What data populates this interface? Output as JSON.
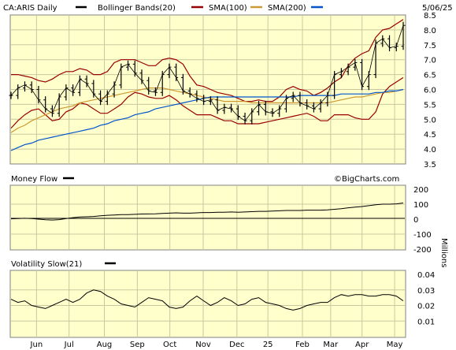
{
  "header": {
    "symbol_label": "CA:ARIS Daily",
    "bollinger_label": "Bollinger Bands(20)",
    "sma100_label": "SMA(100)",
    "sma200_label": "SMA(200)",
    "date": "5/06/25"
  },
  "panels": {
    "money_flow_label": "Money Flow",
    "volatility_label": "Volatility Slow(21)",
    "watermark": "©BigCharts.com",
    "mf_unit": "Millions"
  },
  "colors": {
    "background": "#ffffcc",
    "grid": "#c8c8a0",
    "price": "#000000",
    "bollinger": "#990000",
    "sma100": "#cc9933",
    "sma200": "#0055cc",
    "legend_price": "#000000",
    "legend_bollinger": "#990000",
    "legend_sma100": "#cc9933",
    "legend_sma200": "#0055cc"
  },
  "chart_data": [
    {
      "type": "line",
      "name": "price",
      "ylim": [
        3.5,
        8.5
      ],
      "y_ticks": [
        "3.5",
        "4.0",
        "4.5",
        "5.0",
        "5.5",
        "6.0",
        "6.5",
        "7.0",
        "7.5",
        "8.0",
        "8.5"
      ],
      "x_tick_labels": [
        "Jun",
        "Jul",
        "Aug",
        "Sep",
        "Oct",
        "Nov",
        "Dec",
        "25",
        "Feb",
        "Mar",
        "Apr",
        "May"
      ],
      "series": [
        {
          "name": "CA:ARIS Daily",
          "values": [
            5.8,
            6.05,
            6.15,
            6.0,
            5.65,
            5.35,
            5.2,
            5.75,
            6.05,
            5.9,
            6.35,
            6.2,
            5.85,
            5.6,
            5.85,
            6.15,
            6.75,
            6.85,
            6.55,
            6.3,
            5.95,
            5.9,
            6.5,
            6.75,
            6.4,
            5.95,
            5.85,
            5.7,
            5.6,
            5.65,
            5.3,
            5.4,
            5.35,
            5.1,
            4.95,
            5.25,
            5.5,
            5.25,
            5.2,
            5.35,
            5.7,
            5.8,
            5.55,
            5.45,
            5.35,
            5.55,
            5.8,
            6.5,
            6.6,
            6.75,
            6.9,
            6.1,
            6.5,
            7.55,
            7.7,
            7.4,
            7.45,
            8.15
          ]
        },
        {
          "name": "Bollinger Bands(20) upper",
          "values": [
            6.5,
            6.5,
            6.45,
            6.4,
            6.3,
            6.25,
            6.35,
            6.5,
            6.6,
            6.6,
            6.7,
            6.65,
            6.5,
            6.5,
            6.6,
            6.9,
            7.0,
            7.0,
            7.0,
            6.9,
            6.8,
            6.8,
            7.0,
            7.05,
            7.0,
            6.85,
            6.45,
            6.15,
            6.1,
            6.0,
            5.9,
            5.85,
            5.8,
            5.7,
            5.6,
            5.6,
            5.65,
            5.6,
            5.6,
            5.75,
            6.0,
            6.1,
            6.0,
            5.95,
            5.8,
            5.9,
            6.05,
            6.25,
            6.4,
            6.8,
            7.05,
            7.2,
            7.3,
            7.75,
            8.0,
            8.05,
            8.2,
            8.35
          ]
        },
        {
          "name": "Bollinger Bands(20) lower",
          "values": [
            4.7,
            4.95,
            5.15,
            5.3,
            5.35,
            5.15,
            4.95,
            5.0,
            5.25,
            5.35,
            5.55,
            5.5,
            5.35,
            5.2,
            5.2,
            5.35,
            5.5,
            5.75,
            5.9,
            5.85,
            5.75,
            5.7,
            5.7,
            5.8,
            5.65,
            5.45,
            5.3,
            5.15,
            5.15,
            5.15,
            5.05,
            4.95,
            4.95,
            4.85,
            4.85,
            4.85,
            4.85,
            4.9,
            4.95,
            5.0,
            5.05,
            5.1,
            5.15,
            5.2,
            5.1,
            4.95,
            4.95,
            5.15,
            5.15,
            5.15,
            5.05,
            5.0,
            5.0,
            5.25,
            5.85,
            6.1,
            6.25,
            6.4
          ]
        },
        {
          "name": "SMA(100)",
          "values": [
            4.55,
            4.7,
            4.8,
            4.95,
            5.05,
            5.15,
            5.25,
            5.35,
            5.4,
            5.45,
            5.55,
            5.6,
            5.65,
            5.7,
            5.75,
            5.8,
            5.85,
            5.9,
            5.95,
            6.0,
            6.05,
            6.05,
            6.05,
            6.0,
            5.95,
            5.9,
            5.85,
            5.8,
            5.75,
            5.7,
            5.65,
            5.6,
            5.6,
            5.6,
            5.6,
            5.55,
            5.55,
            5.55,
            5.55,
            5.55,
            5.55,
            5.55,
            5.55,
            5.55,
            5.55,
            5.55,
            5.55,
            5.6,
            5.65,
            5.7,
            5.75,
            5.75,
            5.8,
            5.85,
            5.9,
            5.9,
            5.95,
            6.0
          ]
        },
        {
          "name": "SMA(200)",
          "values": [
            3.95,
            4.05,
            4.15,
            4.2,
            4.3,
            4.35,
            4.4,
            4.45,
            4.5,
            4.55,
            4.6,
            4.65,
            4.7,
            4.8,
            4.85,
            4.95,
            5.0,
            5.05,
            5.15,
            5.2,
            5.25,
            5.35,
            5.4,
            5.45,
            5.5,
            5.55,
            5.6,
            5.65,
            5.7,
            5.75,
            5.75,
            5.75,
            5.75,
            5.75,
            5.75,
            5.75,
            5.75,
            5.75,
            5.75,
            5.75,
            5.75,
            5.75,
            5.8,
            5.8,
            5.8,
            5.8,
            5.8,
            5.8,
            5.85,
            5.85,
            5.85,
            5.85,
            5.85,
            5.9,
            5.9,
            5.95,
            5.95,
            6.0
          ]
        }
      ]
    },
    {
      "type": "line",
      "name": "money-flow",
      "ylim": [
        -200,
        200
      ],
      "y_ticks": [
        "200",
        "100",
        "0",
        "-100",
        "-200"
      ],
      "series": [
        {
          "name": "Money Flow",
          "values": [
            2,
            4,
            6,
            4,
            0,
            -4,
            -6,
            -3,
            4,
            10,
            14,
            16,
            18,
            22,
            26,
            28,
            30,
            30,
            32,
            34,
            35,
            36,
            38,
            40,
            42,
            40,
            40,
            42,
            44,
            44,
            46,
            46,
            48,
            46,
            48,
            50,
            52,
            52,
            54,
            56,
            58,
            58,
            58,
            60,
            60,
            60,
            62,
            66,
            70,
            76,
            80,
            84,
            90,
            96,
            100,
            100,
            102,
            108
          ]
        }
      ]
    },
    {
      "type": "line",
      "name": "volatility",
      "ylim": [
        0.0,
        0.04
      ],
      "y_ticks": [
        "0.04",
        "0.03",
        "0.02",
        "0.01"
      ],
      "series": [
        {
          "name": "Volatility Slow(21)",
          "values": [
            0.024,
            0.022,
            0.023,
            0.02,
            0.019,
            0.018,
            0.02,
            0.022,
            0.024,
            0.022,
            0.024,
            0.028,
            0.03,
            0.029,
            0.026,
            0.024,
            0.021,
            0.02,
            0.019,
            0.022,
            0.025,
            0.024,
            0.023,
            0.019,
            0.018,
            0.019,
            0.023,
            0.026,
            0.023,
            0.02,
            0.022,
            0.025,
            0.023,
            0.02,
            0.021,
            0.024,
            0.025,
            0.022,
            0.021,
            0.02,
            0.018,
            0.017,
            0.018,
            0.02,
            0.021,
            0.022,
            0.022,
            0.025,
            0.027,
            0.026,
            0.027,
            0.027,
            0.026,
            0.026,
            0.027,
            0.027,
            0.026,
            0.023
          ]
        }
      ]
    }
  ]
}
